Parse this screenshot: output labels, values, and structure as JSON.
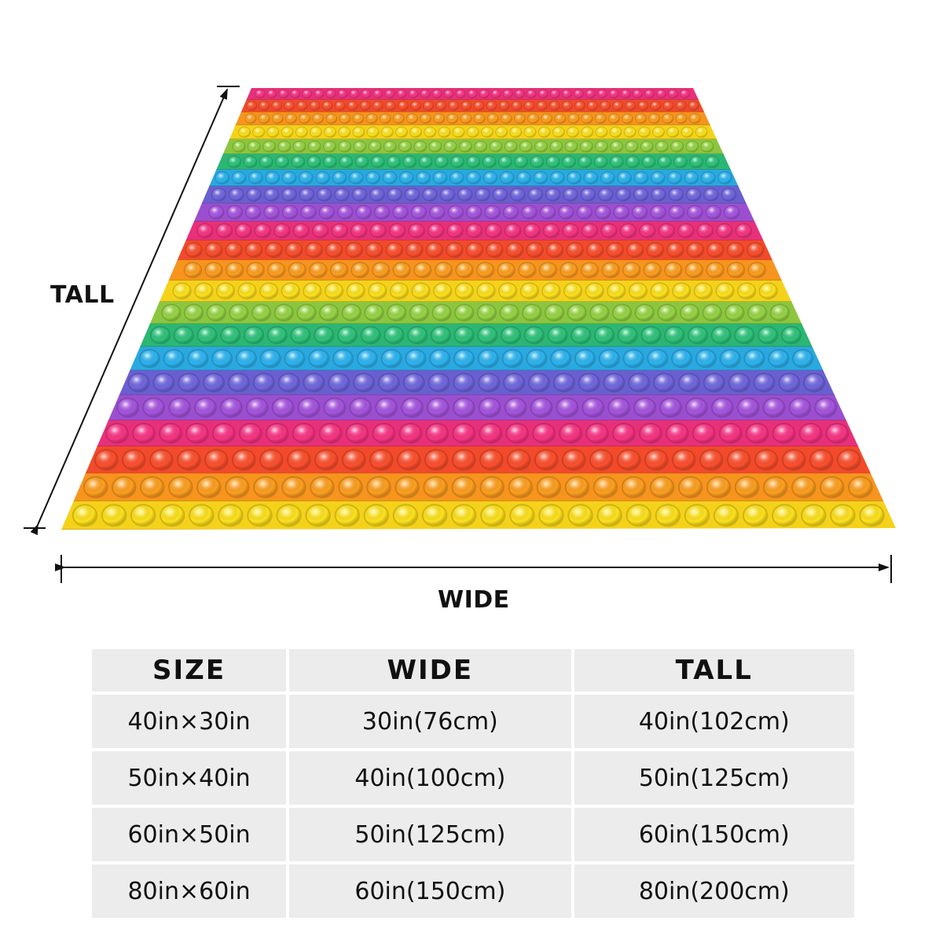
{
  "dimension_labels": {
    "tall": "TALL",
    "wide": "WIDE"
  },
  "product": {
    "pattern": "rainbow-pop-it-bubbles"
  },
  "stripe_colors": [
    "#e8307a",
    "#f24a2a",
    "#f7941d",
    "#f5d21a",
    "#8cc63f",
    "#2bb673",
    "#2aa8e0",
    "#6a5fd0",
    "#9b4fd0"
  ],
  "table": {
    "headers": [
      "SIZE",
      "WIDE",
      "TALL"
    ],
    "rows": [
      [
        "40in×30in",
        "30in(76cm)",
        "40in(102cm)"
      ],
      [
        "50in×40in",
        "40in(100cm)",
        "50in(125cm)"
      ],
      [
        "60in×50in",
        "50in(125cm)",
        "60in(150cm)"
      ],
      [
        "80in×60in",
        "60in(150cm)",
        "80in(200cm)"
      ]
    ]
  }
}
